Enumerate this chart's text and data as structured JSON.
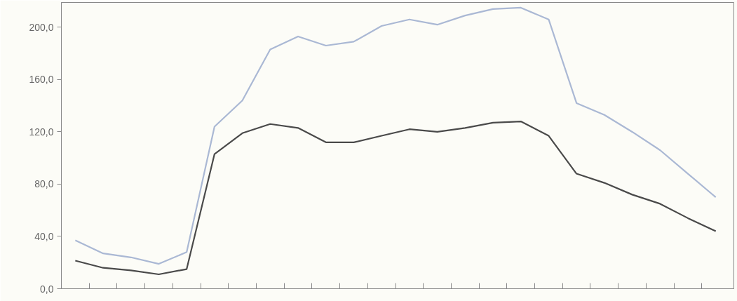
{
  "chart_data": {
    "type": "line",
    "categories": [
      null,
      null,
      null,
      null,
      null,
      null,
      null,
      null,
      null,
      null,
      null,
      null,
      null,
      null,
      null,
      null,
      null,
      null,
      null,
      null,
      null,
      null,
      null,
      null
    ],
    "series": [
      {
        "color": "#aab8d4",
        "values": [
          37,
          27,
          24,
          19,
          28,
          124,
          144,
          183,
          193,
          186,
          189,
          201,
          206,
          202,
          209,
          214,
          215,
          206,
          142,
          133,
          120,
          106,
          88,
          70
        ]
      },
      {
        "color": "#4a4a4a",
        "values": [
          21.5,
          16,
          14,
          11,
          15,
          103,
          119,
          126,
          123,
          112,
          112,
          117,
          122,
          120,
          123,
          127,
          128,
          117,
          88,
          81,
          72,
          65,
          54,
          44
        ]
      }
    ],
    "ylim": [
      0,
      219
    ],
    "yticks": [
      {
        "value": 0,
        "label": "0,0"
      },
      {
        "value": 40,
        "label": "40,0"
      },
      {
        "value": 80,
        "label": "80,0"
      },
      {
        "value": 120,
        "label": "120,0"
      },
      {
        "value": 160,
        "label": "160,0"
      },
      {
        "value": 200,
        "label": "200,0"
      }
    ],
    "grid": false,
    "line_style": "solid",
    "marker": "none"
  }
}
